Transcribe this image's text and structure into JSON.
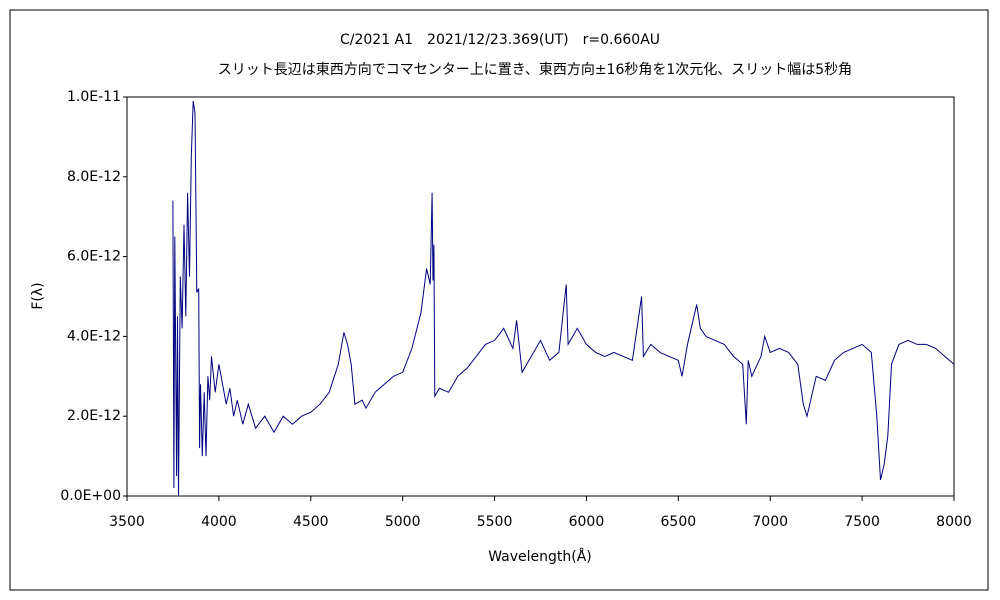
{
  "chart_data": {
    "type": "line",
    "title": "C/2021 A1　2021/12/23.369(UT)　r=0.660AU",
    "subtitle": "スリット長辺は東西方向でコマセンター上に置き、東西方向±16秒角を1次元化、スリット幅は5秒角",
    "x_label": "Wavelength(Å)",
    "y_label": "F(λ)",
    "xlim": [
      3500,
      8000
    ],
    "xticks": [
      3500,
      4000,
      4500,
      5000,
      5500,
      6000,
      6500,
      7000,
      7500,
      8000
    ],
    "ylim": [
      0,
      1e-11
    ],
    "yticks": [
      {
        "value": 0,
        "label": "0.0E+00"
      },
      {
        "value": 2e-12,
        "label": "2.0E-12"
      },
      {
        "value": 4e-12,
        "label": "4.0E-12"
      },
      {
        "value": 6e-12,
        "label": "6.0E-12"
      },
      {
        "value": 8e-12,
        "label": "8.0E-12"
      },
      {
        "value": 1e-11,
        "label": "1.0E-11"
      }
    ],
    "grid": false,
    "series": [
      {
        "color": "#000080",
        "x": [
          3750,
          3755,
          3760,
          3770,
          3775,
          3780,
          3790,
          3800,
          3810,
          3820,
          3830,
          3840,
          3850,
          3860,
          3870,
          3880,
          3890,
          3895,
          3900,
          3910,
          3920,
          3930,
          3940,
          3950,
          3960,
          3980,
          4000,
          4020,
          4040,
          4060,
          4080,
          4100,
          4130,
          4160,
          4200,
          4250,
          4300,
          4350,
          4400,
          4450,
          4500,
          4550,
          4600,
          4650,
          4680,
          4700,
          4720,
          4740,
          4780,
          4800,
          4850,
          4900,
          4950,
          5000,
          5050,
          5100,
          5130,
          5150,
          5160,
          5165,
          5170,
          5175,
          5200,
          5250,
          5300,
          5350,
          5400,
          5450,
          5500,
          5550,
          5600,
          5620,
          5650,
          5700,
          5750,
          5800,
          5850,
          5890,
          5900,
          5950,
          6000,
          6050,
          6100,
          6150,
          6200,
          6250,
          6300,
          6310,
          6350,
          6400,
          6450,
          6500,
          6520,
          6550,
          6600,
          6620,
          6650,
          6700,
          6750,
          6800,
          6850,
          6870,
          6880,
          6900,
          6950,
          6970,
          7000,
          7050,
          7100,
          7150,
          7180,
          7200,
          7230,
          7250,
          7300,
          7350,
          7400,
          7450,
          7500,
          7550,
          7580,
          7600,
          7620,
          7640,
          7660,
          7700,
          7750,
          7800,
          7850,
          7900,
          7950,
          8000
        ],
        "values": [
          7.4e-12,
          2e-13,
          6.5e-12,
          5e-13,
          4.5e-12,
          0,
          5.5e-12,
          4.2e-12,
          6.8e-12,
          4.5e-12,
          7.6e-12,
          5.5e-12,
          8.5e-12,
          9.9e-12,
          9.6e-12,
          5.1e-12,
          5.2e-12,
          1.2e-12,
          2.8e-12,
          1e-12,
          2.6e-12,
          1e-12,
          3e-12,
          2.4e-12,
          3.5e-12,
          2.6e-12,
          3.3e-12,
          2.8e-12,
          2.3e-12,
          2.7e-12,
          2e-12,
          2.4e-12,
          1.8e-12,
          2.3e-12,
          1.7e-12,
          2e-12,
          1.6e-12,
          2e-12,
          1.8e-12,
          2e-12,
          2.1e-12,
          2.3e-12,
          2.6e-12,
          3.3e-12,
          4.1e-12,
          3.8e-12,
          3.3e-12,
          2.3e-12,
          2.4e-12,
          2.2e-12,
          2.6e-12,
          2.8e-12,
          3e-12,
          3.1e-12,
          3.7e-12,
          4.6e-12,
          5.7e-12,
          5.3e-12,
          7.6e-12,
          5.4e-12,
          6.3e-12,
          2.5e-12,
          2.7e-12,
          2.6e-12,
          3e-12,
          3.2e-12,
          3.5e-12,
          3.8e-12,
          3.9e-12,
          4.2e-12,
          3.7e-12,
          4.4e-12,
          3.1e-12,
          3.5e-12,
          3.9e-12,
          3.4e-12,
          3.6e-12,
          5.3e-12,
          3.8e-12,
          4.2e-12,
          3.8e-12,
          3.6e-12,
          3.5e-12,
          3.6e-12,
          3.5e-12,
          3.4e-12,
          5e-12,
          3.5e-12,
          3.8e-12,
          3.6e-12,
          3.5e-12,
          3.4e-12,
          3e-12,
          3.8e-12,
          4.8e-12,
          4.2e-12,
          4e-12,
          3.9e-12,
          3.8e-12,
          3.5e-12,
          3.3e-12,
          1.8e-12,
          3.4e-12,
          3e-12,
          3.5e-12,
          4e-12,
          3.6e-12,
          3.7e-12,
          3.6e-12,
          3.3e-12,
          2.3e-12,
          2e-12,
          2.6e-12,
          3e-12,
          2.9e-12,
          3.4e-12,
          3.6e-12,
          3.7e-12,
          3.8e-12,
          3.6e-12,
          2e-12,
          4e-13,
          8e-13,
          1.5e-12,
          3.3e-12,
          3.8e-12,
          3.9e-12,
          3.8e-12,
          3.8e-12,
          3.7e-12,
          3.5e-12,
          3.3e-12
        ]
      }
    ]
  }
}
